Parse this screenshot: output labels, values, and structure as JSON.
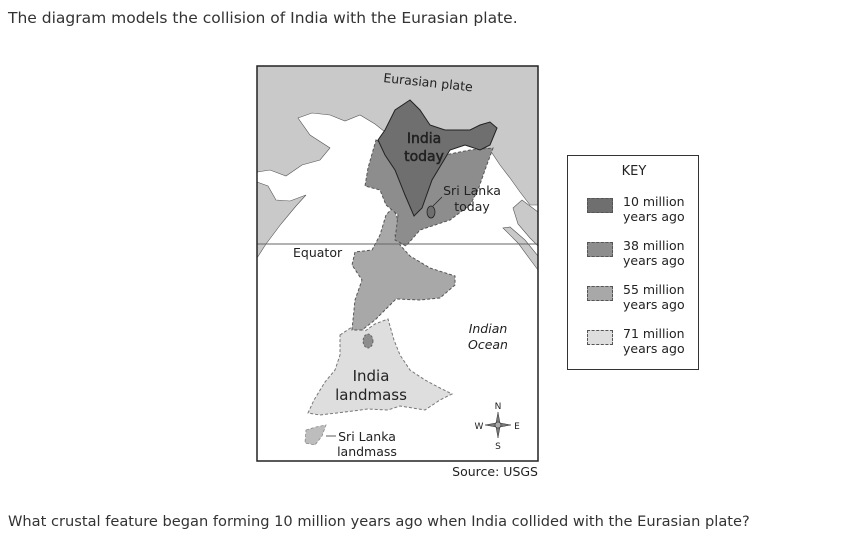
{
  "prompt": "The diagram models the collision of India with the Eurasian plate.",
  "question": "What crustal feature began forming 10 million years ago when India collided with the Eurasian plate?",
  "map": {
    "eurasian_plate": "Eurasian plate",
    "india_today_1": "India",
    "india_today_2": "today",
    "sri_lanka_today_1": "Sri Lanka",
    "sri_lanka_today_2": "today",
    "equator": "Equator",
    "indian_ocean_1": "Indian",
    "indian_ocean_2": "Ocean",
    "india_landmass_1": "India",
    "india_landmass_2": "landmass",
    "sri_lanka_landmass_1": "Sri Lanka",
    "sri_lanka_landmass_2": "landmass",
    "compass": {
      "n": "N",
      "s": "S",
      "e": "E",
      "w": "W"
    },
    "source": "Source: USGS"
  },
  "key": {
    "title": "KEY",
    "items": [
      {
        "line1": "10 million",
        "line2": "years ago",
        "color": "#6f6f6f"
      },
      {
        "line1": "38 million",
        "line2": "years ago",
        "color": "#8d8d8d"
      },
      {
        "line1": "55 million",
        "line2": "years ago",
        "color": "#a8a8a8"
      },
      {
        "line1": "71 million",
        "line2": "years ago",
        "color": "#dedede"
      }
    ]
  },
  "colors": {
    "land": "#c9c9c9",
    "ocean": "#ffffff"
  }
}
